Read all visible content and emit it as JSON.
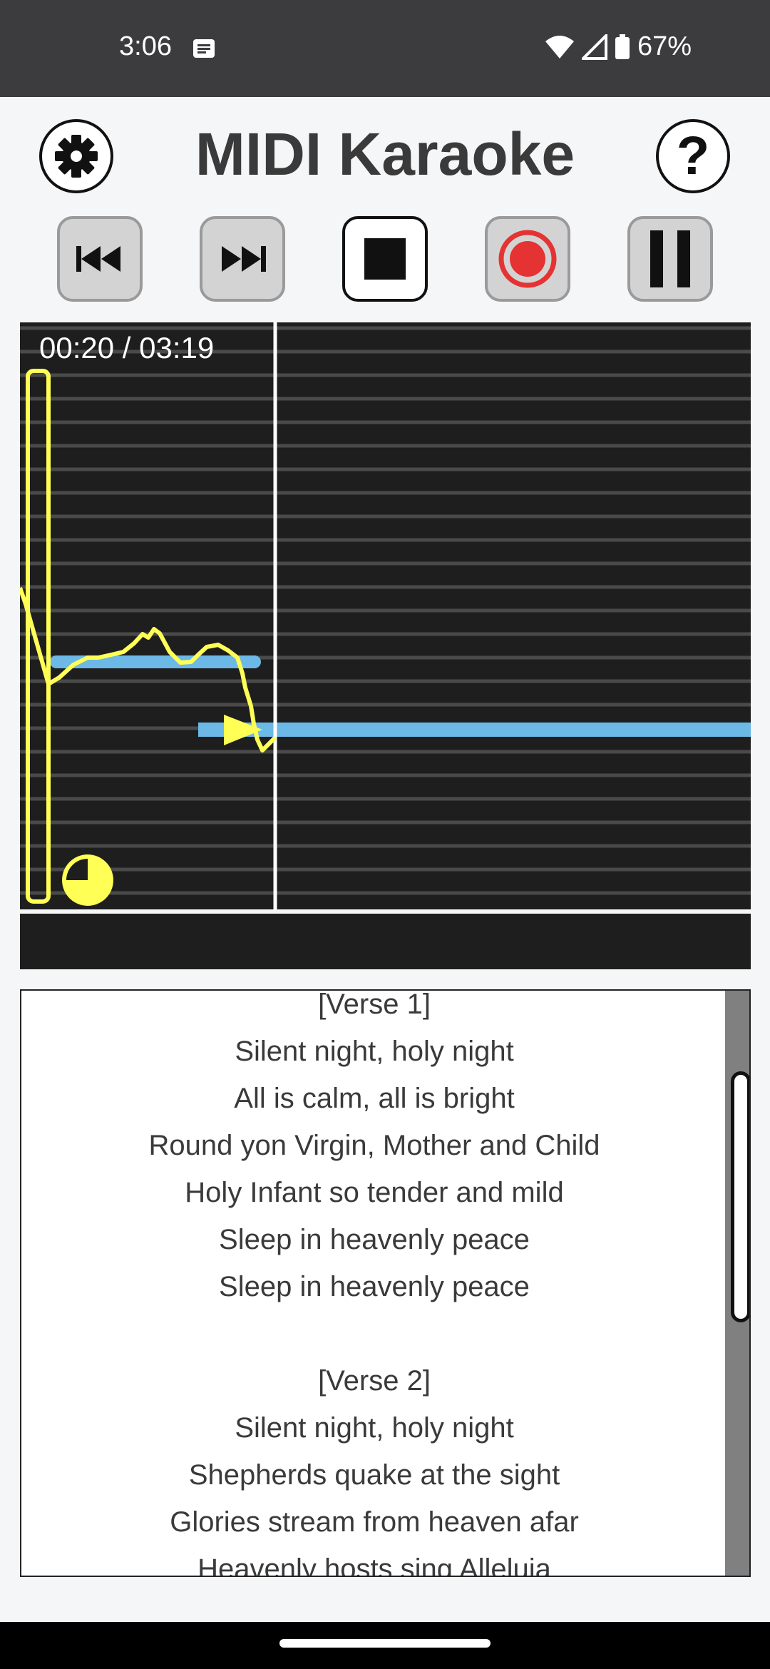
{
  "status_bar": {
    "time": "3:06",
    "battery_percent": "67%",
    "icons": [
      "notification-icon",
      "wifi-icon",
      "signal-icon",
      "battery-icon"
    ]
  },
  "header": {
    "title": "MIDI Karaoke",
    "settings_icon": "gear-icon",
    "help_label": "?"
  },
  "transport": {
    "buttons": [
      "skip-previous",
      "skip-next",
      "stop",
      "record",
      "pause"
    ],
    "active": "stop",
    "record_color": "#e53232"
  },
  "player": {
    "elapsed": "00:20",
    "separator": " / ",
    "total": "03:19",
    "pitch_line_color": "#ffff55",
    "note_bar_color": "#6cb8e6",
    "progress_fraction": 0.1
  },
  "lyrics": {
    "lines": [
      "[Verse 1]",
      "Silent night, holy night",
      "All is calm, all is bright",
      "Round yon Virgin, Mother and Child",
      "Holy Infant so tender and mild",
      "Sleep in heavenly peace",
      "Sleep in heavenly peace",
      "",
      "[Verse 2]",
      "Silent night, holy night",
      "Shepherds quake at the sight",
      "Glories stream from heaven afar",
      "Heavenly hosts sing Alleluia"
    ]
  }
}
